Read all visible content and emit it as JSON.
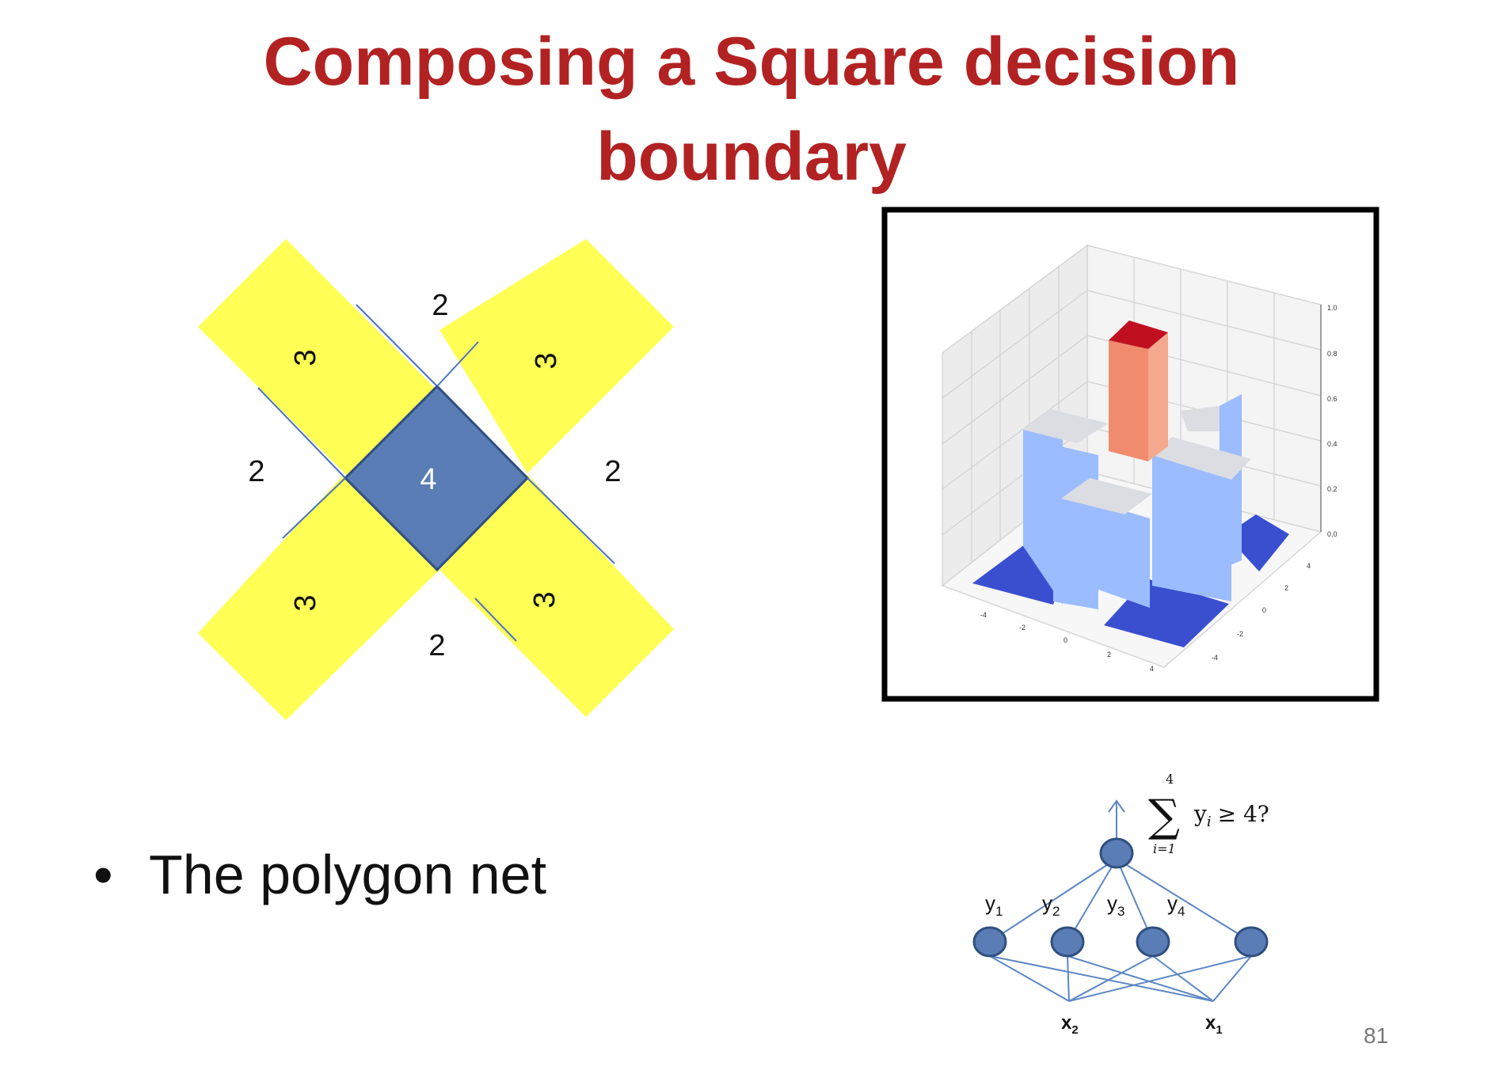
{
  "title": {
    "line1": "Composing a Square decision",
    "line2": "boundary"
  },
  "diagram": {
    "colors": {
      "arm": "#ffff55",
      "center": "#5b7db5",
      "edge": "#4a72c4"
    },
    "center_label": "4",
    "arm_labels": {
      "top_left": "3",
      "top_right": "3",
      "bottom_left": "3",
      "bottom_right": "3"
    },
    "outer_labels": {
      "top": "2",
      "left": "2",
      "right": "2",
      "bottom": "2"
    }
  },
  "plot3d": {
    "z_ticks": [
      "1.0",
      "0.8",
      "0.6",
      "0.4",
      "0.2",
      "0.0"
    ],
    "x_ticks": [
      "-4",
      "-2",
      "0",
      "2",
      "4"
    ],
    "y_ticks": [
      "4",
      "2",
      "0",
      "-2",
      "-4"
    ],
    "colors": {
      "low": "#3a4fd0",
      "mid": "#9bbcff",
      "top": "#dcdde3",
      "peak": "#f08b6e",
      "peak_top": "#c01020"
    }
  },
  "bullet": {
    "text": "The polygon net"
  },
  "network": {
    "formula": {
      "sum_top": "4",
      "sum_bottom": "i=1",
      "body": "y",
      "body_sub": "i",
      "rest": "≥ 4?"
    },
    "hidden_labels": [
      {
        "base": "y",
        "sub": "1"
      },
      {
        "base": "y",
        "sub": "2"
      },
      {
        "base": "y",
        "sub": "3"
      },
      {
        "base": "y",
        "sub": "4"
      }
    ],
    "inputs": [
      {
        "base": "x",
        "sub": "2"
      },
      {
        "base": "x",
        "sub": "1"
      }
    ],
    "colors": {
      "node": "#5b7db5",
      "node_edge": "#2f4f80",
      "line": "#5b86c5"
    }
  },
  "page_number": "81"
}
